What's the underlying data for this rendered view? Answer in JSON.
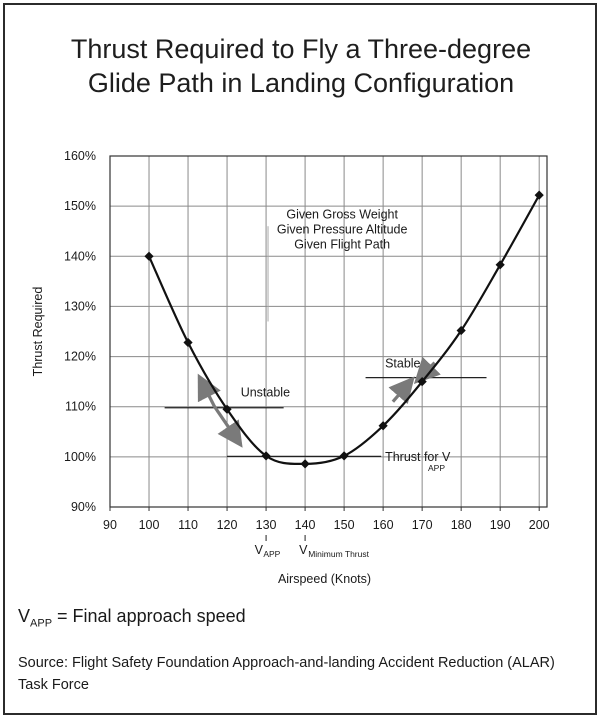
{
  "title_line1": "Thrust Required to Fly a Three-degree",
  "title_line2": "Glide Path in Landing Configuration",
  "chart_data": {
    "type": "line",
    "xlabel": "Airspeed (Knots)",
    "ylabel": "Thrust Required",
    "xlim": [
      90,
      202
    ],
    "ylim": [
      90,
      160
    ],
    "x_ticks": [
      90,
      100,
      110,
      120,
      130,
      140,
      150,
      160,
      170,
      180,
      190,
      200
    ],
    "y_ticks": [
      90,
      100,
      110,
      120,
      130,
      140,
      150,
      160
    ],
    "y_tick_labels": [
      "90%",
      "100%",
      "110%",
      "120%",
      "130%",
      "140%",
      "150%",
      "160%"
    ],
    "grid": true,
    "series": [
      {
        "x": [
          100,
          110,
          120,
          130,
          140,
          150,
          160,
          170,
          180,
          190,
          200
        ],
        "y": [
          140,
          122.8,
          109.5,
          100.2,
          98.6,
          100.2,
          106.2,
          115,
          125.2,
          138.3,
          152.2
        ]
      }
    ],
    "annotations": {
      "given_lines": [
        "Given Gross Weight",
        "Given Pressure Altitude",
        "Given Flight Path"
      ],
      "unstable_label": "Unstable",
      "stable_label": "Stable",
      "thrust_for_label": "Thrust for V",
      "thrust_for_sub": "APP",
      "vapp_label": "V",
      "vapp_sub": "APP",
      "vmin_label": "V",
      "vmin_sub": "Minimum Thrust"
    }
  },
  "footer": {
    "vapp_def_v": "V",
    "vapp_def_sub": "APP",
    "vapp_def_text": " = Final approach speed",
    "source": "Source: Flight Safety Foundation Approach-and-landing Accident Reduction (ALAR) Task Force"
  },
  "colors": {
    "curve": "#111111",
    "grid": "#8a8a8a",
    "arrow": "#7a7a7a"
  }
}
